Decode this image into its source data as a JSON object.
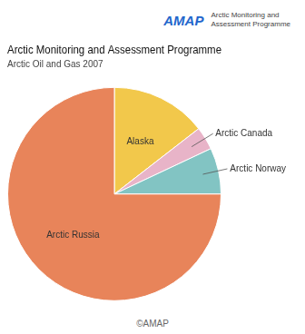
{
  "chart_data": {
    "type": "pie",
    "title": "Arctic Monitoring and Assessment Programme",
    "subtitle": "Arctic Oil and Gas 2007",
    "categories": [
      "Alaska",
      "Arctic Canada",
      "Arctic Norway",
      "Arctic Russia"
    ],
    "values": [
      14.5,
      3.5,
      7.0,
      75.0
    ],
    "colors": [
      "#F2C84B",
      "#E8B4C8",
      "#82C4C3",
      "#E8845A"
    ],
    "annotations": [
      "AMAP",
      "Arctic Monitoring and",
      "Assessment Programme",
      "©AMAP"
    ]
  }
}
